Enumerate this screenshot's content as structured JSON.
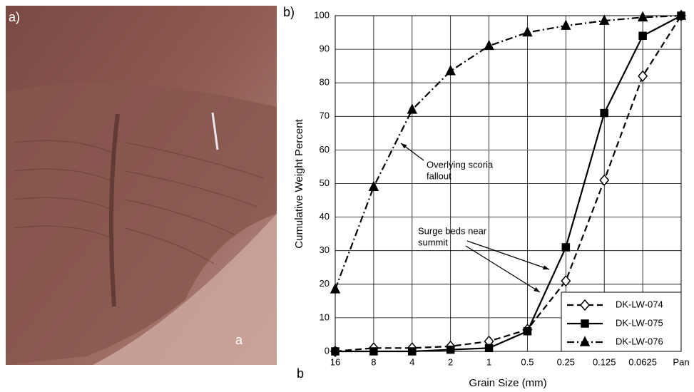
{
  "panel_a": {
    "label": "a)",
    "annotation": "a"
  },
  "panel_b": {
    "label": "b)",
    "annotation": "b"
  },
  "chart_data": {
    "type": "line",
    "x_label": "Grain Size (mm)",
    "y_label": "Cumulative Weight Percent",
    "categories": [
      "16",
      "8",
      "4",
      "2",
      "1",
      "0.5",
      "0.25",
      "0.125",
      "0.0625",
      "Pan"
    ],
    "series": [
      {
        "name": "DK-LW-074",
        "color": "#000000",
        "linestyle": "dashed",
        "marker": "diamond-open",
        "values": [
          0,
          1,
          1,
          1.5,
          3,
          6.5,
          21,
          51,
          82,
          100
        ]
      },
      {
        "name": "DK-LW-075",
        "color": "#000000",
        "linestyle": "solid",
        "marker": "square",
        "values": [
          0,
          0,
          0,
          0.5,
          1,
          6,
          31,
          71,
          94,
          100
        ]
      },
      {
        "name": "DK-LW-076",
        "color": "#000000",
        "linestyle": "dashdot",
        "marker": "triangle",
        "values": [
          18.5,
          49,
          72,
          83.5,
          91,
          95,
          97,
          98.5,
          99.5,
          100
        ]
      }
    ],
    "ylim": [
      0,
      100
    ],
    "yticks": [
      0,
      10,
      20,
      30,
      40,
      50,
      60,
      70,
      80,
      90,
      100
    ],
    "grid": true,
    "legend": "lower-right",
    "annotations": [
      {
        "lines": [
          "Overlying scoria",
          "fallout"
        ]
      },
      {
        "lines": [
          "Surge beds near",
          "summit"
        ]
      }
    ]
  }
}
